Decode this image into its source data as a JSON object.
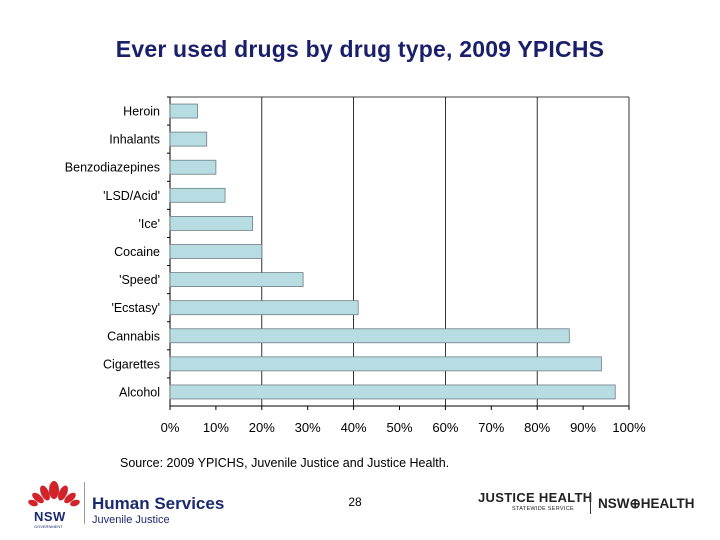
{
  "slide": {
    "title": "Ever used drugs by drug type, 2009 YPICHS",
    "source": "Source: 2009 YPICHS, Juvenile Justice and Justice Health.",
    "page_number": "28"
  },
  "footer": {
    "left_mark": "NSW",
    "left_mark_sub": "GOVERNMENT",
    "left_title": "Human Services",
    "left_subtitle": "Juvenile Justice",
    "right_title": "JUSTICE HEALTH",
    "right_subtitle": "STATEWIDE SERVICE",
    "right_brand": "NSW⊕HEALTH"
  },
  "colors": {
    "title": "#1a1f6b",
    "bar_fill": "#b7dde3",
    "bar_stroke": "#6e7e84",
    "brand_navy": "#1a2a6e",
    "brand_red": "#d2232a"
  },
  "chart_data": {
    "type": "bar",
    "orientation": "horizontal",
    "categories": [
      "Heroin",
      "Inhalants",
      "Benzodiazepines",
      "'LSD/Acid'",
      "'Ice'",
      "Cocaine",
      "'Speed'",
      "'Ecstasy'",
      "Cannabis",
      "Cigarettes",
      "Alcohol"
    ],
    "values": [
      6,
      8,
      10,
      12,
      18,
      20,
      29,
      41,
      87,
      94,
      97
    ],
    "unit": "%",
    "xlim": [
      0,
      100
    ],
    "x_ticks": [
      "0%",
      "10%",
      "20%",
      "30%",
      "40%",
      "50%",
      "60%",
      "70%",
      "80%",
      "90%",
      "100%"
    ],
    "grid": "vertical gridlines at 20% intervals",
    "legend": "none",
    "title": "",
    "xlabel": "",
    "ylabel": ""
  }
}
